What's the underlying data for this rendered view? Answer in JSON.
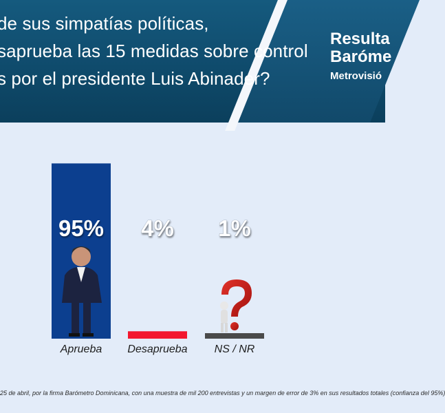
{
  "header": {
    "question_lines": [
      "de sus simpatías políticas,",
      "saprueba las 15 medidas sobre control",
      "s por el presidente Luis Abinader?"
    ],
    "brand_line1": "Resulta",
    "brand_line2": "Baróme",
    "brand_line3": "Metrovisió"
  },
  "chart_data": {
    "type": "bar",
    "categories": [
      "Aprueba",
      "Desaprueba",
      "NS / NR"
    ],
    "values": [
      95,
      4,
      1
    ],
    "value_labels": [
      "95%",
      "4%",
      "1%"
    ],
    "colors": [
      "#0c3f8f",
      "#f3172e",
      "#4a4a4a"
    ],
    "ylim": [
      0,
      100
    ],
    "title": "",
    "xlabel": "",
    "ylabel": ""
  },
  "footnote": "25 de abril, por la firma Barómetro Dominicana, con una muestra de mil 200 entrevistas y un margen de error de 3% en sus resultados totales (confianza del 95%)"
}
